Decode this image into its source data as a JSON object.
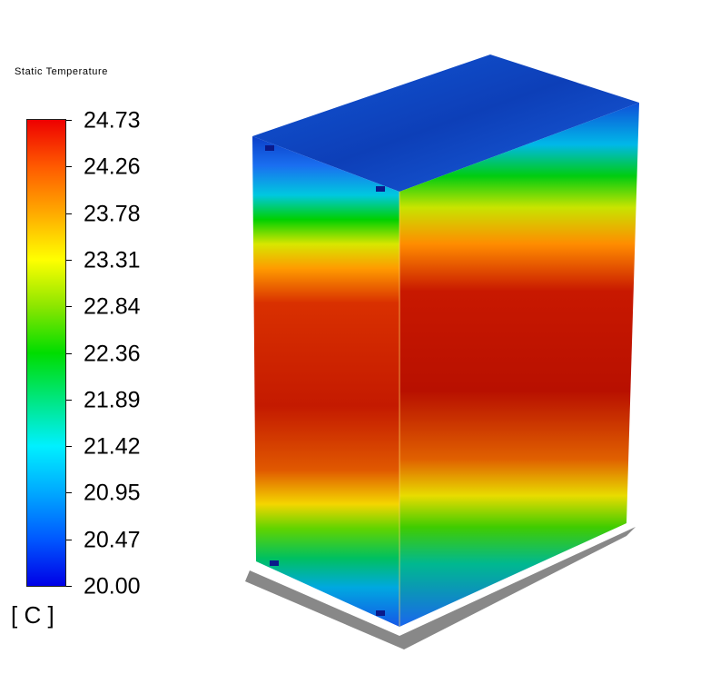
{
  "legend": {
    "title": "Static Temperature",
    "unit": "[ C ]",
    "ticks": [
      "24.73",
      "24.26",
      "23.78",
      "23.31",
      "22.84",
      "22.36",
      "21.89",
      "21.42",
      "20.95",
      "20.47",
      "20.00"
    ],
    "min": 20.0,
    "max": 24.73
  },
  "colors": {
    "low": "#0000e6",
    "mid_low": "#00f0ff",
    "mid": "#00dd00",
    "mid_high": "#ffff00",
    "high": "#ee0000"
  }
}
